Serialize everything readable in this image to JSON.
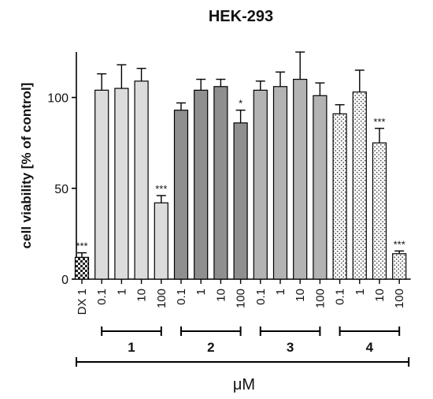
{
  "chart_data": {
    "type": "bar",
    "title": "HEK-293",
    "xlabel": "μM",
    "ylabel": "cell viability [% of control]",
    "ylim": [
      0,
      125
    ],
    "yticks": [
      0,
      50,
      100
    ],
    "ytick_labels": [
      "0",
      "50",
      "100"
    ],
    "grid": false,
    "legend": "none",
    "categories": [
      "DX 1",
      "0.1",
      "1",
      "10",
      "100",
      "0.1",
      "1",
      "10",
      "100",
      "0.1",
      "1",
      "10",
      "100",
      "0.1",
      "1",
      "10",
      "100"
    ],
    "values": [
      12,
      104,
      105,
      109,
      42,
      93,
      104,
      106,
      86,
      104,
      106,
      110,
      101,
      91,
      103,
      75,
      14
    ],
    "errors": [
      2.5,
      9,
      13,
      7,
      4,
      4,
      6,
      4,
      7,
      5,
      8,
      15,
      7,
      5,
      12,
      8,
      1.5
    ],
    "significance": [
      "***",
      "",
      "",
      "",
      "***",
      "",
      "",
      "",
      "*",
      "",
      "",
      "",
      "",
      "",
      "",
      "***",
      "***"
    ],
    "groups": [
      {
        "label": "1",
        "indices": [
          1,
          2,
          3,
          4
        ]
      },
      {
        "label": "2",
        "indices": [
          5,
          6,
          7,
          8
        ]
      },
      {
        "label": "3",
        "indices": [
          9,
          10,
          11,
          12
        ]
      },
      {
        "label": "4",
        "indices": [
          13,
          14,
          15,
          16
        ]
      }
    ],
    "bar_styles": [
      "checker",
      "light",
      "light",
      "light",
      "light",
      "dark",
      "dark",
      "dark",
      "dark",
      "medium",
      "medium",
      "medium",
      "medium",
      "dotted",
      "dotted",
      "dotted",
      "dotted"
    ],
    "colors": {
      "light": "#dcdcdc",
      "dark": "#8f8f8f",
      "medium": "#b3b3b3",
      "dotted_bg": "#ffffff",
      "dotted_fg": "#555555",
      "checker_a": "#222222",
      "checker_b": "#ffffff",
      "axis": "#000000"
    }
  }
}
